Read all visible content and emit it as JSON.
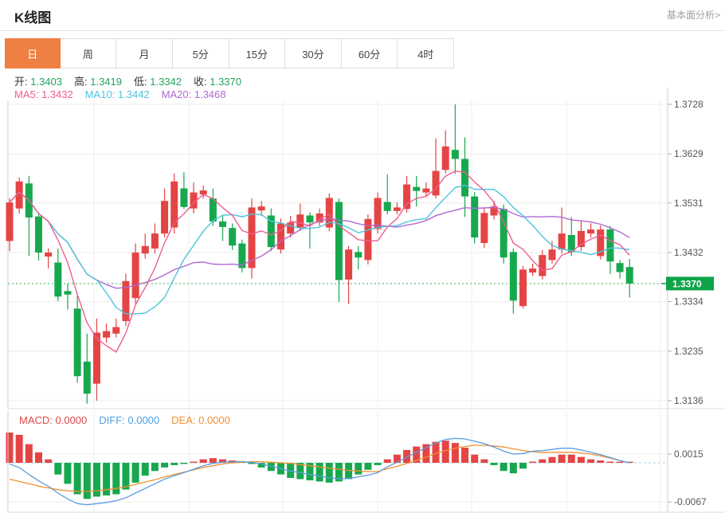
{
  "header": {
    "title": "K线图",
    "link": "基本面分析>"
  },
  "tabs": {
    "items": [
      "日",
      "周",
      "月",
      "5分",
      "15分",
      "30分",
      "60分",
      "4时"
    ],
    "active_index": 0
  },
  "ohlc": {
    "items": [
      {
        "label": "开:",
        "value": "1.3403"
      },
      {
        "label": "高:",
        "value": "1.3419"
      },
      {
        "label": "低:",
        "value": "1.3342"
      },
      {
        "label": "收:",
        "value": "1.3370"
      }
    ]
  },
  "ma_legend": {
    "items": [
      {
        "label": "MA5:",
        "value": "1.3432",
        "color": "#ef5d8e"
      },
      {
        "label": "MA10:",
        "value": "1.3442",
        "color": "#4cc4de"
      },
      {
        "label": "MA20:",
        "value": "1.3468",
        "color": "#b168d2"
      }
    ]
  },
  "macd_legend": {
    "items": [
      {
        "label": "MACD:",
        "value": "0.0000",
        "color": "#e04849"
      },
      {
        "label": "DIFF:",
        "value": "0.0000",
        "color": "#4f9ee0"
      },
      {
        "label": "DEA:",
        "value": "0.0000",
        "color": "#f0912f"
      }
    ]
  },
  "price_axis": {
    "tick_labels": [
      "1.3728",
      "1.3629",
      "1.3531",
      "1.3432",
      "1.3334",
      "1.3235",
      "1.3136"
    ],
    "current_price": "1.3370"
  },
  "macd_axis": {
    "tick_labels": [
      "0.0015",
      "-0.0067"
    ],
    "tick_values": [
      0.0015,
      -0.0067
    ]
  },
  "colors": {
    "up_red": "#e54444",
    "down_green": "#17a84e",
    "tab_active_bg": "#ef8043",
    "value_green": "#21a45c",
    "ma5": "#ef5d8e",
    "ma10": "#4cc4de",
    "ma20": "#b168d2",
    "diff_blue": "#5b9ce0",
    "dea_orange": "#f0912f",
    "tag_bg": "#0fa348",
    "dotted_line": "#7fc98f",
    "zero_dash": "#b5d9e8",
    "grid": "#ececec",
    "axis_line": "#cfcfcf",
    "axis_text": "#555"
  },
  "chart_data": {
    "type": "candlestick",
    "title": "K线图 (日)",
    "price_range": [
      1.3136,
      1.3728
    ],
    "current_price": 1.337,
    "candles": [
      [
        1.3455,
        1.354,
        1.3435,
        1.3532
      ],
      [
        1.352,
        1.3582,
        1.351,
        1.3574
      ],
      [
        1.357,
        1.3585,
        1.3425,
        1.3502
      ],
      [
        1.3504,
        1.351,
        1.3416,
        1.3432
      ],
      [
        1.3424,
        1.344,
        1.34,
        1.3432
      ],
      [
        1.3412,
        1.344,
        1.3335,
        1.3344
      ],
      [
        1.3355,
        1.337,
        1.3318,
        1.3348
      ],
      [
        1.332,
        1.3348,
        1.3172,
        1.3185
      ],
      [
        1.3214,
        1.327,
        1.313,
        1.315
      ],
      [
        1.317,
        1.33,
        1.3136,
        1.3272
      ],
      [
        1.3262,
        1.329,
        1.3252,
        1.3275
      ],
      [
        1.327,
        1.33,
        1.3262,
        1.3283
      ],
      [
        1.3295,
        1.339,
        1.3285,
        1.3375
      ],
      [
        1.3341,
        1.345,
        1.333,
        1.3432
      ],
      [
        1.343,
        1.347,
        1.342,
        1.3445
      ],
      [
        1.344,
        1.349,
        1.343,
        1.347
      ],
      [
        1.347,
        1.356,
        1.3462,
        1.3535
      ],
      [
        1.3482,
        1.359,
        1.347,
        1.3574
      ],
      [
        1.356,
        1.3592,
        1.3519,
        1.3523
      ],
      [
        1.352,
        1.3572,
        1.351,
        1.3552
      ],
      [
        1.3548,
        1.3566,
        1.354,
        1.3556
      ],
      [
        1.354,
        1.356,
        1.3485,
        1.3494
      ],
      [
        1.3494,
        1.3505,
        1.3455,
        1.3483
      ],
      [
        1.3481,
        1.349,
        1.3437,
        1.3446
      ],
      [
        1.345,
        1.3458,
        1.3392,
        1.3401
      ],
      [
        1.3401,
        1.354,
        1.338,
        1.3522
      ],
      [
        1.3516,
        1.3535,
        1.3505,
        1.3524
      ],
      [
        1.3506,
        1.352,
        1.3435,
        1.3443
      ],
      [
        1.3438,
        1.35,
        1.343,
        1.349
      ],
      [
        1.347,
        1.3505,
        1.3462,
        1.3492
      ],
      [
        1.3482,
        1.353,
        1.3475,
        1.3508
      ],
      [
        1.3506,
        1.3512,
        1.344,
        1.3492
      ],
      [
        1.3492,
        1.352,
        1.3485,
        1.351
      ],
      [
        1.3482,
        1.355,
        1.3475,
        1.3541
      ],
      [
        1.3533,
        1.354,
        1.3333,
        1.3377
      ],
      [
        1.3378,
        1.3445,
        1.3329,
        1.3438
      ],
      [
        1.3433,
        1.3445,
        1.3398,
        1.3422
      ],
      [
        1.3417,
        1.3508,
        1.3408,
        1.3499
      ],
      [
        1.3479,
        1.3552,
        1.347,
        1.3541
      ],
      [
        1.3533,
        1.3588,
        1.3508,
        1.3515
      ],
      [
        1.3515,
        1.3532,
        1.3508,
        1.3522
      ],
      [
        1.3519,
        1.3585,
        1.3512,
        1.3568
      ],
      [
        1.3563,
        1.3585,
        1.3524,
        1.3555
      ],
      [
        1.3552,
        1.3572,
        1.3545,
        1.356
      ],
      [
        1.3546,
        1.366,
        1.354,
        1.3595
      ],
      [
        1.3597,
        1.3676,
        1.359,
        1.3644
      ],
      [
        1.3637,
        1.3728,
        1.3589,
        1.3619
      ],
      [
        1.3619,
        1.3662,
        1.3503,
        1.3544
      ],
      [
        1.3544,
        1.3553,
        1.345,
        1.3462
      ],
      [
        1.3451,
        1.352,
        1.3441,
        1.3511
      ],
      [
        1.3506,
        1.3535,
        1.3498,
        1.3524
      ],
      [
        1.3519,
        1.3528,
        1.341,
        1.3422
      ],
      [
        1.3433,
        1.344,
        1.331,
        1.3336
      ],
      [
        1.3325,
        1.3405,
        1.332,
        1.3398
      ],
      [
        1.3392,
        1.341,
        1.3385,
        1.34
      ],
      [
        1.3385,
        1.3437,
        1.3378,
        1.3427
      ],
      [
        1.3417,
        1.3455,
        1.341,
        1.3438
      ],
      [
        1.3438,
        1.3522,
        1.343,
        1.347
      ],
      [
        1.3467,
        1.3503,
        1.3425,
        1.3433
      ],
      [
        1.3443,
        1.3495,
        1.3435,
        1.3475
      ],
      [
        1.347,
        1.349,
        1.3462,
        1.3478
      ],
      [
        1.3425,
        1.3486,
        1.3418,
        1.3478
      ],
      [
        1.3478,
        1.3485,
        1.3389,
        1.3414
      ],
      [
        1.3411,
        1.3417,
        1.338,
        1.3393
      ],
      [
        1.3403,
        1.3419,
        1.3342,
        1.337
      ]
    ],
    "ma_periods": [
      5,
      10,
      20
    ],
    "macd": {
      "hist": [
        0.0052,
        0.0048,
        0.0032,
        0.0018,
        0.0006,
        -0.002,
        -0.0036,
        -0.0054,
        -0.0062,
        -0.0058,
        -0.0056,
        -0.0054,
        -0.0046,
        -0.0034,
        -0.0022,
        -0.0014,
        -0.0008,
        -0.0004,
        -0.0002,
        0.0002,
        0.0006,
        0.0008,
        0.0006,
        0.0004,
        0.0002,
        -0.0002,
        -0.0008,
        -0.0014,
        -0.002,
        -0.0026,
        -0.0028,
        -0.003,
        -0.0032,
        -0.0034,
        -0.0032,
        -0.0028,
        -0.002,
        -0.0012,
        -0.0004,
        0.0006,
        0.0014,
        0.0022,
        0.0028,
        0.0032,
        0.0036,
        0.0038,
        0.0034,
        0.0026,
        0.0014,
        0.0006,
        -0.0004,
        -0.0014,
        -0.0018,
        -0.001,
        0.0002,
        0.0006,
        0.001,
        0.0014,
        0.0014,
        0.001,
        0.0006,
        0.0004,
        0.0002,
        0.0001,
        0.0
      ],
      "diff": [
        -0.0002,
        -0.0008,
        -0.002,
        -0.0031,
        -0.004,
        -0.0052,
        -0.0062,
        -0.007,
        -0.0072,
        -0.007,
        -0.0068,
        -0.0065,
        -0.006,
        -0.0052,
        -0.0044,
        -0.0036,
        -0.0028,
        -0.0022,
        -0.0017,
        -0.0011,
        -0.0005,
        -0.0001,
        0.0001,
        0.0002,
        0.0002,
        0.0001,
        -0.0002,
        -0.0006,
        -0.001,
        -0.0014,
        -0.0017,
        -0.002,
        -0.0023,
        -0.0026,
        -0.0027,
        -0.0027,
        -0.0024,
        -0.0021,
        -0.0017,
        -0.0007,
        0.0001,
        0.001,
        0.0018,
        0.0026,
        0.0034,
        0.004,
        0.0042,
        0.0041,
        0.0037,
        0.0033,
        0.0027,
        0.002,
        0.0015,
        0.0016,
        0.002,
        0.0021,
        0.0023,
        0.0025,
        0.0025,
        0.0022,
        0.0018,
        0.0014,
        0.0009,
        0.0004,
        0.0
      ],
      "dea": [
        -0.0028,
        -0.0032,
        -0.0036,
        -0.004,
        -0.0043,
        -0.0046,
        -0.0048,
        -0.0049,
        -0.0049,
        -0.0048,
        -0.0046,
        -0.0044,
        -0.0041,
        -0.0037,
        -0.0033,
        -0.0029,
        -0.0024,
        -0.002,
        -0.0016,
        -0.0012,
        -0.0008,
        -0.0005,
        -0.0002,
        0.0,
        0.0001,
        0.0002,
        0.0002,
        0.0001,
        0.0,
        -0.0001,
        -0.0003,
        -0.0005,
        -0.0007,
        -0.0009,
        -0.0011,
        -0.0013,
        -0.0014,
        -0.0015,
        -0.0015,
        -0.001,
        -0.0006,
        -0.0001,
        0.0004,
        0.001,
        0.0016,
        0.0021,
        0.0025,
        0.0028,
        0.003,
        0.003,
        0.0029,
        0.0027,
        0.0024,
        0.0021,
        0.0019,
        0.0018,
        0.0018,
        0.0018,
        0.0018,
        0.0017,
        0.0015,
        0.0012,
        0.0008,
        0.0004,
        0.0
      ]
    }
  }
}
